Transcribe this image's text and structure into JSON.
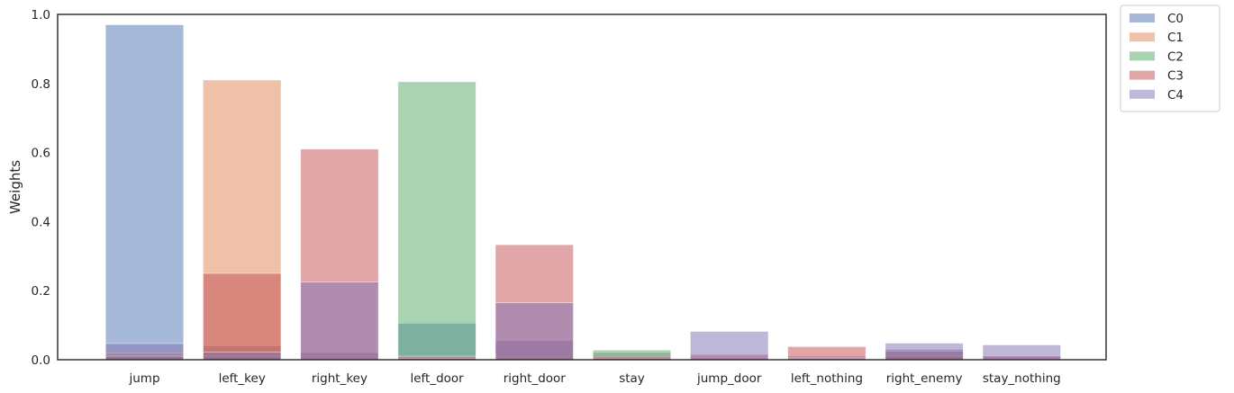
{
  "chart_data": {
    "type": "bar",
    "title": "",
    "xlabel": "",
    "ylabel": "Weights",
    "ylim": [
      0,
      1.0
    ],
    "yticks": [
      0.0,
      0.2,
      0.4,
      0.6,
      0.8,
      1.0
    ],
    "grid": false,
    "legend_position": "outside-top-right",
    "categories": [
      "jump",
      "left_key",
      "right_key",
      "left_door",
      "right_door",
      "stay",
      "jump_door",
      "left_nothing",
      "right_enemy",
      "stay_nothing"
    ],
    "series": [
      {
        "name": "C0",
        "color": "#4c72b0",
        "values": [
          0.97,
          0.04,
          0.02,
          0.105,
          0.055,
          0.02,
          0.005,
          0.01,
          0.03,
          0.01
        ]
      },
      {
        "name": "C1",
        "color": "#dd8452",
        "values": [
          0.02,
          0.81,
          0.01,
          0.01,
          0.01,
          0.015,
          0.005,
          0.005,
          0.01,
          0.005
        ]
      },
      {
        "name": "C2",
        "color": "#55a868",
        "values": [
          0.01,
          0.01,
          0.005,
          0.805,
          0.005,
          0.028,
          0.003,
          0.003,
          0.01,
          0.003
        ]
      },
      {
        "name": "C3",
        "color": "#c44e52",
        "values": [
          0.01,
          0.25,
          0.61,
          0.01,
          0.333,
          0.01,
          0.015,
          0.038,
          0.025,
          0.01
        ]
      },
      {
        "name": "C4",
        "color": "#8172b3",
        "values": [
          0.047,
          0.022,
          0.225,
          0.005,
          0.165,
          0.005,
          0.082,
          0.005,
          0.048,
          0.043
        ]
      }
    ],
    "alpha": 0.5
  }
}
